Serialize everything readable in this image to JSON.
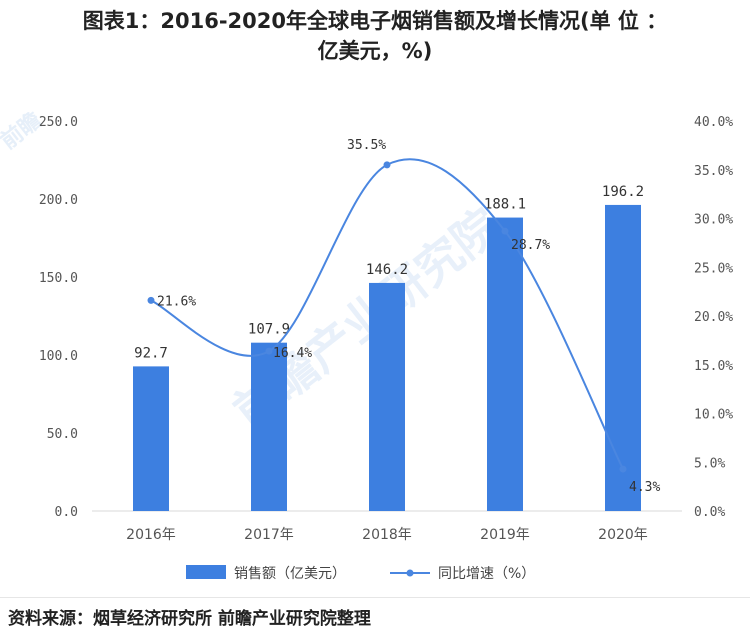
{
  "title": {
    "line1": "图表1：2016-2020年全球电子烟销售额及增长情况(单 位 ：",
    "line2": "亿美元，%)"
  },
  "footer": "资料来源：烟草经济研究所 前瞻产业研究院整理",
  "watermark": "前瞻产业研究院",
  "colors": {
    "bar": "#3d7fe0",
    "line": "#4a86e0",
    "axis_text": "#555555",
    "grid": "#e8e8e8"
  },
  "chart_data": {
    "type": "bar",
    "categories": [
      "2016年",
      "2017年",
      "2018年",
      "2019年",
      "2020年"
    ],
    "series": [
      {
        "name": "销售额（亿美元）",
        "type": "bar",
        "axis": "left",
        "values": [
          92.7,
          107.9,
          146.2,
          188.1,
          196.2
        ],
        "labels": [
          "92.7",
          "107.9",
          "146.2",
          "188.1",
          "196.2"
        ]
      },
      {
        "name": "同比增速（%）",
        "type": "line",
        "axis": "right",
        "values": [
          21.6,
          16.4,
          35.5,
          28.7,
          4.3
        ],
        "labels": [
          "21.6%",
          "16.4%",
          "35.5%",
          "28.7%",
          "4.3%"
        ]
      }
    ],
    "y_left": {
      "lim": [
        0,
        250
      ],
      "ticks": [
        "0.0",
        "50.0",
        "100.0",
        "150.0",
        "200.0",
        "250.0"
      ]
    },
    "y_right": {
      "lim": [
        0,
        40
      ],
      "ticks": [
        "0.0%",
        "5.0%",
        "10.0%",
        "15.0%",
        "20.0%",
        "25.0%",
        "30.0%",
        "35.0%",
        "40.0%"
      ]
    },
    "grid": false,
    "legend": "bottom"
  }
}
